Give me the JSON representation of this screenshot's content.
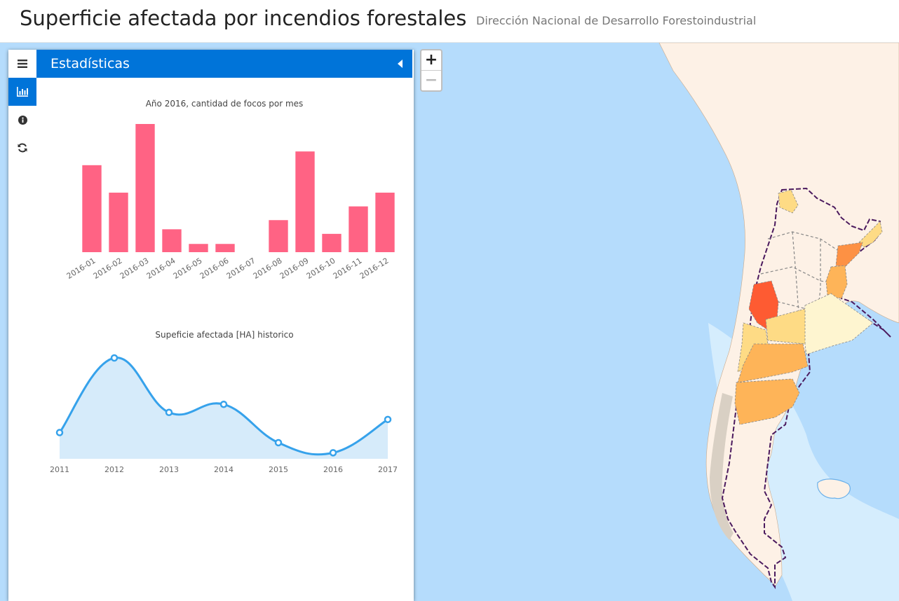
{
  "header": {
    "title": "Superficie afectada por incendios forestales",
    "subtitle": "Dirección Nacional de Desarrollo Forestoindustrial"
  },
  "map": {
    "zoom_in_label": "+",
    "zoom_out_label": "−",
    "ocean_color": "#b5dcfc",
    "land_color": "#fdf1e6",
    "choropleth_colors": [
      "#fef5d0",
      "#fedb85",
      "#feb458",
      "#fd9144",
      "#fe5b32"
    ]
  },
  "sidebar": {
    "tabs": [
      {
        "icon": "menu-icon",
        "active": false
      },
      {
        "icon": "bar-chart-icon",
        "active": true
      },
      {
        "icon": "info-icon",
        "active": false
      },
      {
        "icon": "refresh-icon",
        "active": false
      }
    ],
    "pane_title": "Estadísticas"
  },
  "chart_data": [
    {
      "type": "bar",
      "title": "Año 2016, cantidad de focos por mes",
      "categories": [
        "2016-01",
        "2016-02",
        "2016-03",
        "2016-04",
        "2016-05",
        "2016-06",
        "2016-07",
        "2016-08",
        "2016-09",
        "2016-10",
        "2016-11",
        "2016-12"
      ],
      "values": [
        95,
        65,
        140,
        25,
        9,
        9,
        0,
        35,
        110,
        20,
        50,
        65
      ],
      "ylim": [
        0,
        140
      ],
      "color": "#ff6384",
      "grid": false
    },
    {
      "type": "area",
      "title": "Supeficie afectada [HA] historico",
      "categories": [
        "2011",
        "2012",
        "2013",
        "2014",
        "2015",
        "2016",
        "2017"
      ],
      "values": [
        26,
        100,
        46,
        54,
        16,
        6,
        39
      ],
      "ylim": [
        0,
        100
      ],
      "line_color": "#36a2eb",
      "fill_color": "#d6ebfa",
      "grid": false
    }
  ]
}
